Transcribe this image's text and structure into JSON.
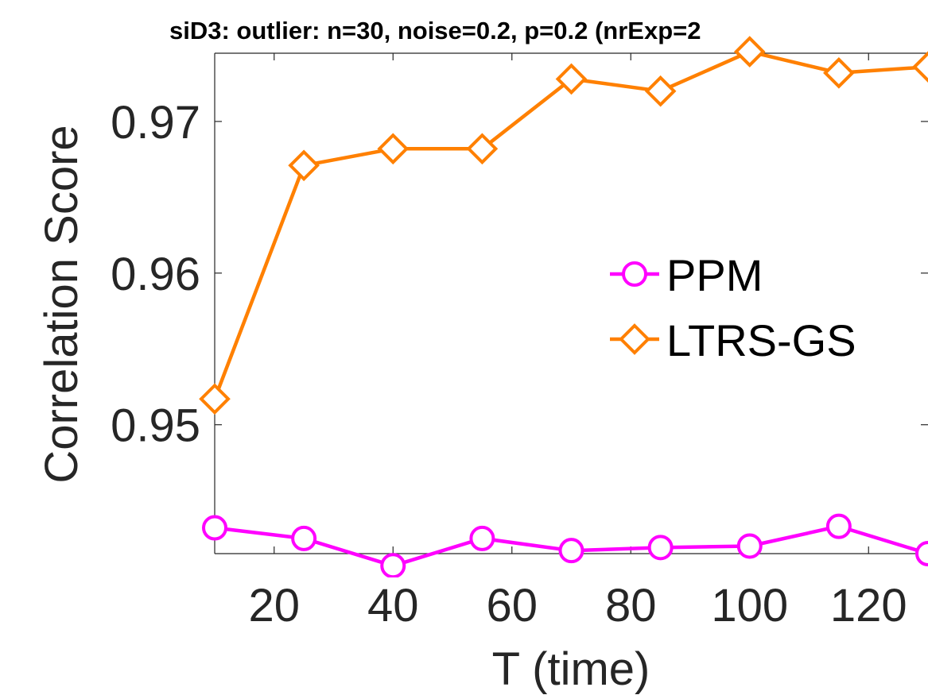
{
  "chart_data": {
    "type": "line",
    "title": "siD3: outlier: n=30, noise=0.2, p=0.2 (nrExp=2",
    "xlabel": "T (time)",
    "ylabel": "Correlation Score",
    "xlim": [
      10,
      130
    ],
    "ylim": [
      0.9415,
      0.9745
    ],
    "x_ticks": [
      20,
      40,
      60,
      80,
      100,
      120
    ],
    "x_tick_labels": [
      "20",
      "40",
      "60",
      "80",
      "100",
      "120"
    ],
    "y_ticks": [
      0.95,
      0.96,
      0.97
    ],
    "y_tick_labels": [
      "0.95",
      "0.96",
      "0.97"
    ],
    "x": [
      10,
      25,
      40,
      55,
      70,
      85,
      100,
      115,
      130
    ],
    "series": [
      {
        "name": "PPM",
        "color": "#ff00ff",
        "marker": "circle",
        "values": [
          0.9432,
          0.9425,
          0.9407,
          0.9425,
          0.9417,
          0.9419,
          0.942,
          0.9433,
          0.9415
        ]
      },
      {
        "name": "LTRS-GS",
        "color": "#ff8000",
        "marker": "diamond",
        "values": [
          0.9517,
          0.9671,
          0.9682,
          0.9682,
          0.9728,
          0.972,
          0.9746,
          0.9732,
          0.9736
        ]
      }
    ],
    "grid": false,
    "box": true,
    "legend": {
      "position": "center-right",
      "entries": [
        "PPM",
        "LTRS-GS"
      ]
    }
  }
}
